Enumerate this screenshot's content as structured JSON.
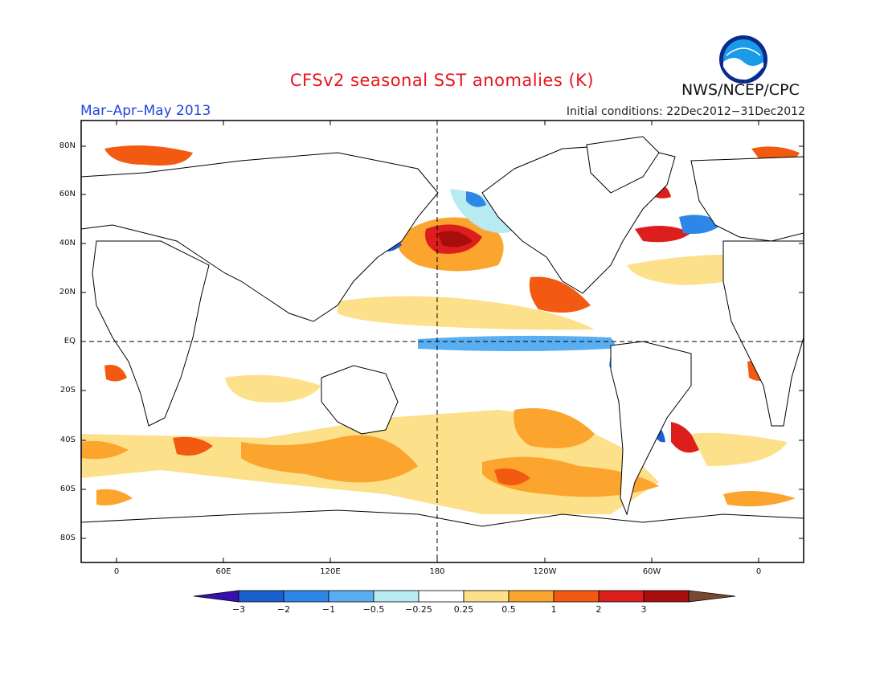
{
  "title": "CFSv2 seasonal SST anomalies (K)",
  "season": "Mar–Apr–May 2013",
  "initial_conditions": "Initial conditions: 22Dec2012−31Dec2012",
  "agency": "NWS/NCEP/CPC",
  "logo_icon": "noaa-logo-icon",
  "map": {
    "lat_labels": [
      "80N",
      "60N",
      "40N",
      "20N",
      "EQ",
      "20S",
      "40S",
      "60S",
      "80S"
    ],
    "lon_labels": [
      "0",
      "60E",
      "120E",
      "180",
      "120W",
      "60W",
      "0"
    ]
  },
  "colorbar": {
    "labels": [
      "−3",
      "−2",
      "−1",
      "−0.5",
      "−0.25",
      "0.25",
      "0.5",
      "1",
      "2",
      "3"
    ],
    "colors": [
      "#3a0fb0",
      "#1c5fd0",
      "#2e86e8",
      "#58aef0",
      "#b8eaf2",
      "#ffffff",
      "#fde08a",
      "#fba52e",
      "#f25a12",
      "#dc1e1c",
      "#a80d0d",
      "#7a4830"
    ]
  },
  "colors": {
    "title": "#e8141c",
    "season": "#2244dd"
  }
}
